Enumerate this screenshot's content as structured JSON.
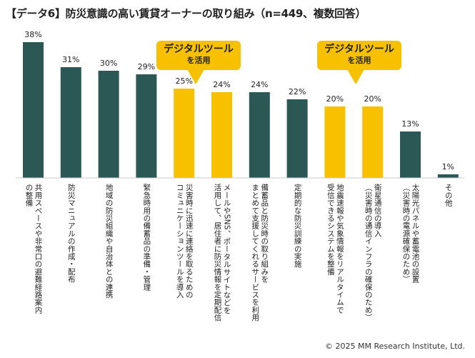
{
  "title": "【データ6】防災意識の高い賃貸オーナーの取り組み（n=449、複数回答）",
  "callouts": [
    {
      "main": "デジタルツール",
      "sub": "を活用"
    },
    {
      "main": "デジタルツール",
      "sub": "を活用"
    }
  ],
  "copyright": "© 2025 MM Research Institute, Ltd.",
  "colors": {
    "standard": "#2b5855",
    "digital": "#f7c100",
    "axis": "#c8c8c8"
  },
  "chart_data": {
    "type": "bar",
    "ylim": [
      0,
      40
    ],
    "categories": [
      "共用スペースや非常口の避難経路案内\nの整備",
      "防災マニュアルの作成・配布",
      "地域の防災組織や自治体との連携",
      "緊急時用の備蓄品の準備・管理",
      "災害時に迅速に連絡を取るための\nコミュニケーションツールを導入",
      "メールやSNS、ポータルサイトなどを\n活用して、居住者に防災情報を定期配信",
      "備蓄品と防災時の取り組みを\nまとめて支援してくれるサービスを利用",
      "定期的な防災訓練の実施",
      "地震速報や気象情報をリアルタイムで\n受信できるシステムを整備",
      "衛星通信の導入\n（災害時の通信インフラの確保のため）",
      "太陽光パネルや蓄電池の設置\n（災害時の電源確保のため）",
      "その他"
    ],
    "values": [
      38,
      31,
      30,
      29,
      25,
      24,
      24,
      22,
      20,
      20,
      13,
      1
    ],
    "value_labels": [
      "38%",
      "31%",
      "30%",
      "29%",
      "25%",
      "24%",
      "24%",
      "22%",
      "20%",
      "20%",
      "13%",
      "1%"
    ],
    "digital_tool": [
      false,
      false,
      false,
      false,
      true,
      true,
      false,
      false,
      true,
      true,
      false,
      false
    ]
  }
}
